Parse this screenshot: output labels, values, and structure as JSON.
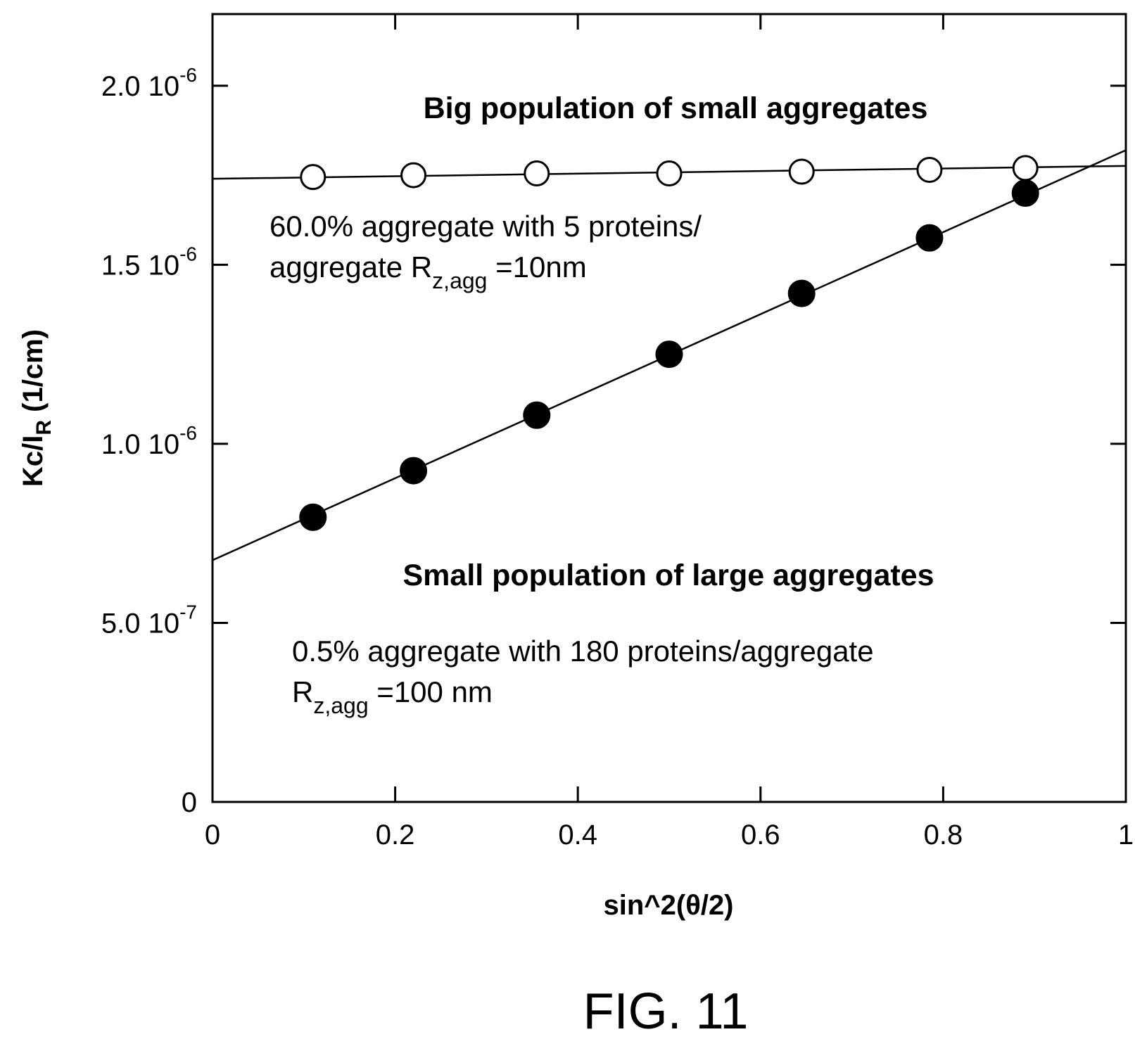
{
  "chart_data": {
    "type": "scatter",
    "xlabel": "sin^2(θ/2)",
    "ylabel": {
      "prefix": "Kc/I",
      "sub": "R",
      "suffix": " (1/cm)"
    },
    "xlim": [
      0,
      1
    ],
    "ylim": [
      0,
      2.2e-06
    ],
    "x_ticks": [
      {
        "value": 0,
        "label": "0"
      },
      {
        "value": 0.2,
        "label": "0.2"
      },
      {
        "value": 0.4,
        "label": "0.4"
      },
      {
        "value": 0.6,
        "label": "0.6"
      },
      {
        "value": 0.8,
        "label": "0.8"
      },
      {
        "value": 1,
        "label": "1"
      }
    ],
    "y_ticks": [
      {
        "value": 0,
        "mantissa": "0",
        "exp": ""
      },
      {
        "value": 5e-07,
        "mantissa": "5.0 10",
        "exp": "-7"
      },
      {
        "value": 1e-06,
        "mantissa": "1.0 10",
        "exp": "-6"
      },
      {
        "value": 1.5e-06,
        "mantissa": "1.5 10",
        "exp": "-6"
      },
      {
        "value": 2e-06,
        "mantissa": "2.0 10",
        "exp": "-6"
      }
    ],
    "grid": false,
    "series": [
      {
        "marker": "open-circle",
        "color": "#000000",
        "x": [
          0.11,
          0.22,
          0.355,
          0.5,
          0.645,
          0.785,
          0.89
        ],
        "y": [
          1.745e-06,
          1.75e-06,
          1.755e-06,
          1.755e-06,
          1.76e-06,
          1.765e-06,
          1.77e-06
        ],
        "fit": {
          "x": [
            0,
            1
          ],
          "y": [
            1.74e-06,
            1.776e-06
          ]
        }
      },
      {
        "marker": "filled-circle",
        "color": "#000000",
        "x": [
          0.11,
          0.22,
          0.355,
          0.5,
          0.645,
          0.785,
          0.89
        ],
        "y": [
          7.95e-07,
          9.25e-07,
          1.08e-06,
          1.25e-06,
          1.42e-06,
          1.575e-06,
          1.7e-06
        ],
        "fit": {
          "x": [
            0,
            1
          ],
          "y": [
            6.75e-07,
            1.82e-06
          ]
        }
      }
    ],
    "annotations": {
      "big_title": "Big population of small aggregates",
      "small_title": "Small population of large aggregates",
      "big_line1": "60.0% aggregate with 5 proteins/",
      "big_line2_pre": "aggregate R",
      "big_line2_sub": "z,agg",
      "big_line2_post": " =10nm",
      "small_line1": "0.5% aggregate with 180 proteins/aggregate",
      "small_line2_pre": "R",
      "small_line2_sub": "z,agg",
      "small_line2_post": " =100 nm"
    }
  },
  "figure_label": "FIG. 11"
}
